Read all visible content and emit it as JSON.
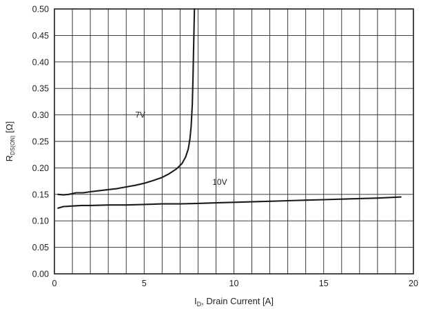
{
  "chart_data": {
    "type": "line",
    "xlabel": {
      "main": "I",
      "sub": "D",
      "rest": ", Drain Current [A]"
    },
    "ylabel": {
      "main": "R",
      "sub": "DS(ON)",
      "rest": " [Ω]"
    },
    "xlim": [
      0,
      20
    ],
    "ylim": [
      0.0,
      0.5
    ],
    "x_ticks": [
      0,
      5,
      10,
      15,
      20
    ],
    "x_tick_labels": [
      "0",
      "5",
      "10",
      "15",
      "20"
    ],
    "y_ticks": [
      0.0,
      0.05,
      0.1,
      0.15,
      0.2,
      0.25,
      0.3,
      0.35,
      0.4,
      0.45,
      0.5
    ],
    "y_tick_labels": [
      "0.00",
      "0.05",
      "0.10",
      "0.15",
      "0.20",
      "0.25",
      "0.30",
      "0.35",
      "0.40",
      "0.45",
      "0.50"
    ],
    "x_grid_step": 1,
    "y_grid_step": 0.05,
    "grid": true,
    "series": [
      {
        "name": "7V",
        "color": "#1a1a1a",
        "x": [
          0.2,
          0.5,
          0.8,
          1.2,
          1.6,
          2.0,
          2.5,
          3.0,
          3.5,
          4.0,
          4.5,
          5.0,
          5.5,
          6.0,
          6.4,
          6.8,
          7.1,
          7.3,
          7.45,
          7.55,
          7.62,
          7.68,
          7.72,
          7.75,
          7.78,
          7.8
        ],
        "y": [
          0.15,
          0.149,
          0.15,
          0.153,
          0.153,
          0.155,
          0.157,
          0.159,
          0.161,
          0.164,
          0.167,
          0.171,
          0.176,
          0.182,
          0.189,
          0.198,
          0.208,
          0.22,
          0.235,
          0.255,
          0.28,
          0.32,
          0.37,
          0.42,
          0.47,
          0.5
        ]
      },
      {
        "name": "10V",
        "color": "#1a1a1a",
        "x": [
          0.2,
          0.5,
          1.0,
          1.5,
          2.0,
          3.0,
          4.0,
          5.0,
          6.0,
          7.0,
          8.0,
          9.0,
          10.0,
          11.0,
          12.0,
          13.0,
          14.0,
          15.0,
          16.0,
          17.0,
          18.0,
          19.3
        ],
        "y": [
          0.124,
          0.127,
          0.128,
          0.129,
          0.129,
          0.13,
          0.13,
          0.131,
          0.132,
          0.132,
          0.133,
          0.134,
          0.135,
          0.136,
          0.137,
          0.138,
          0.139,
          0.14,
          0.141,
          0.142,
          0.143,
          0.145
        ]
      }
    ],
    "annotations": [
      {
        "text": "7V",
        "x": 4.5,
        "y": 0.295
      },
      {
        "text": "10V",
        "x": 8.8,
        "y": 0.168
      }
    ]
  }
}
